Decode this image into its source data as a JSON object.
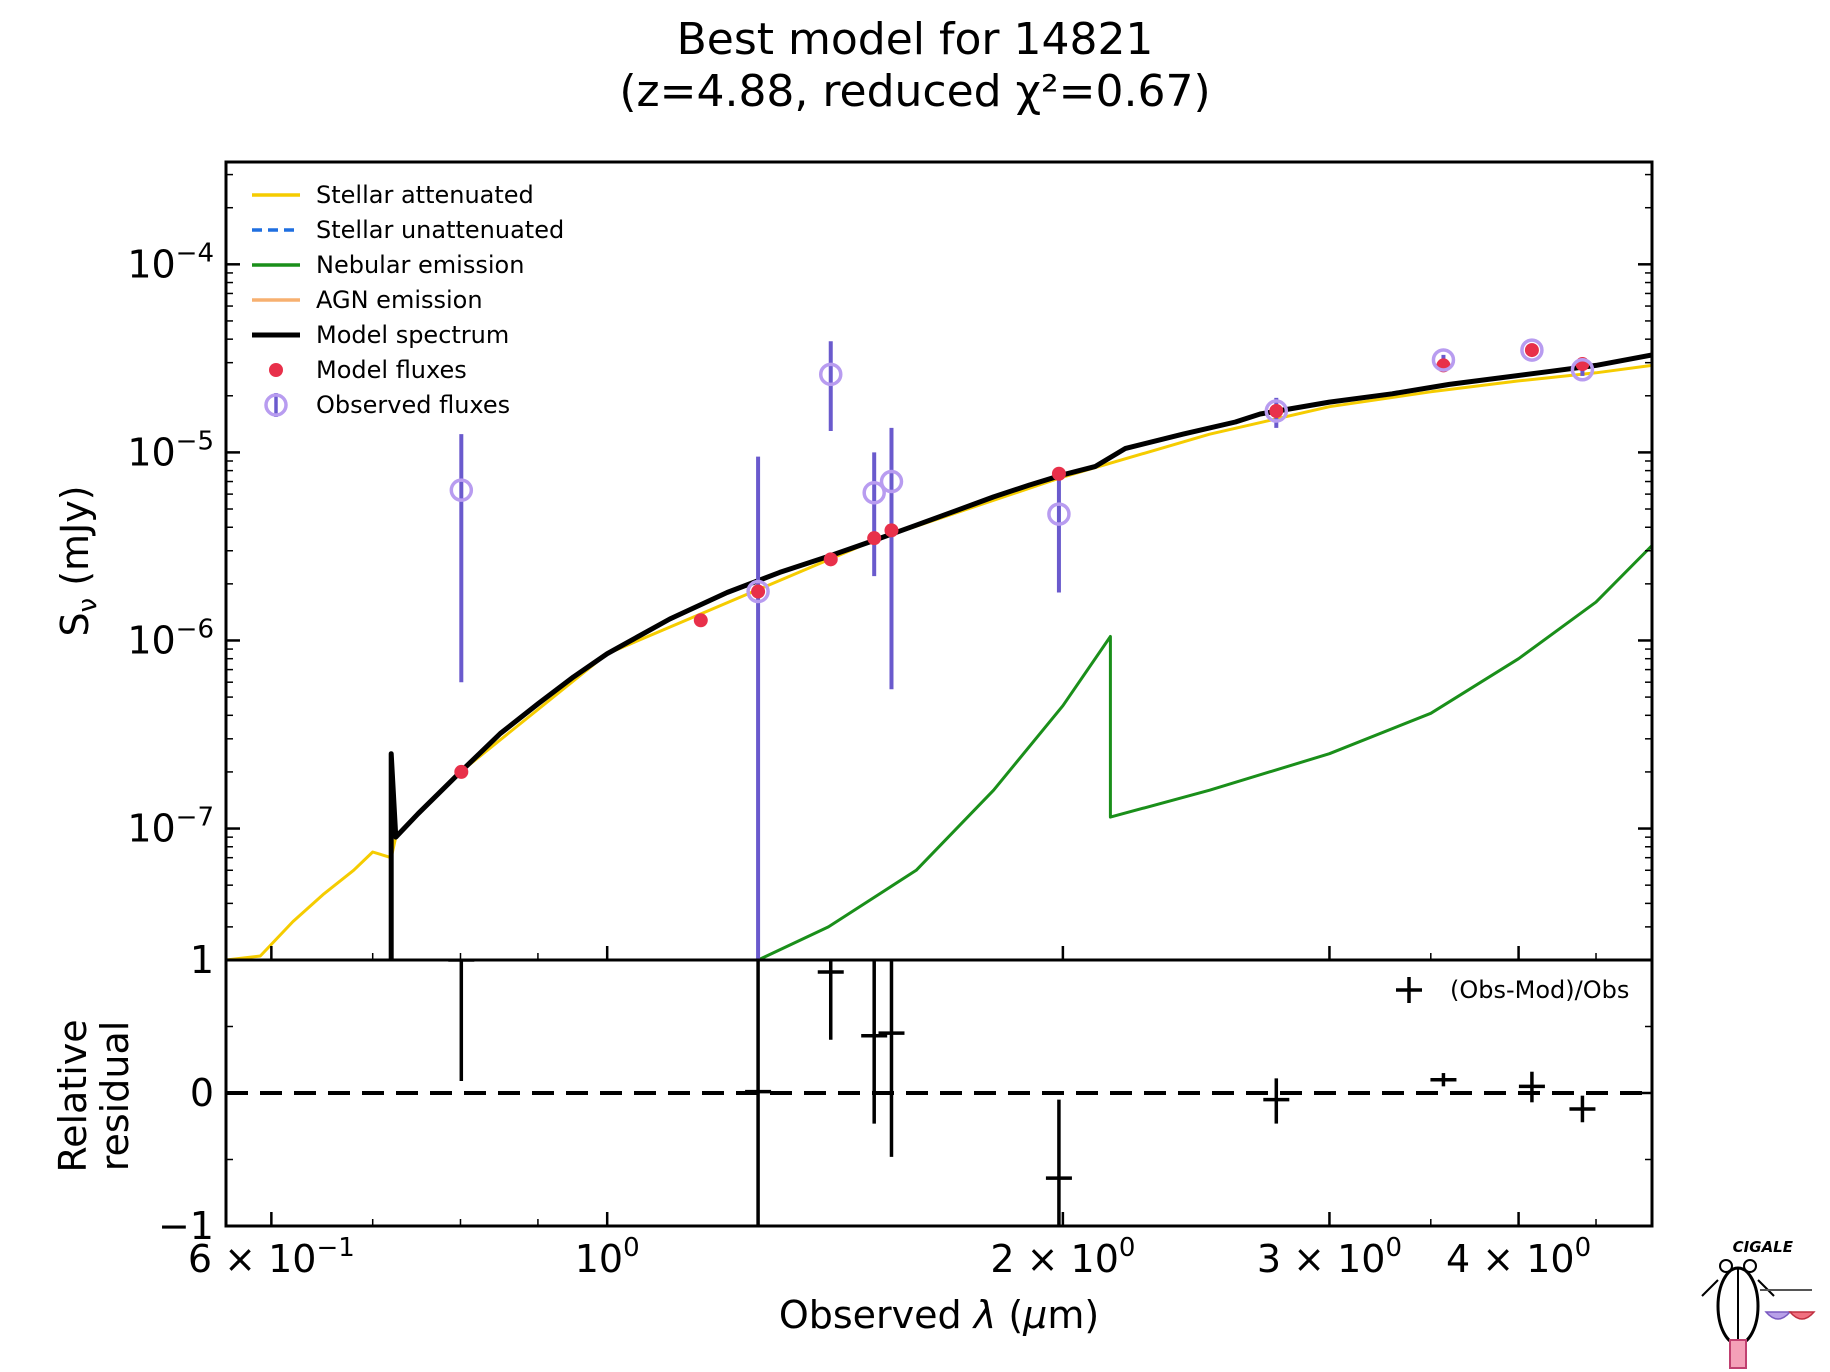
{
  "chart_data": [
    {
      "type": "line",
      "title": "Best model for 14821",
      "subtitle": "(z=4.88, reduced χ²=0.67)",
      "ylabel": "S",
      "ylabel_sub": "ν",
      "ylabel_unit": " (mJy)",
      "xscale": "log",
      "yscale": "log",
      "xlim": [
        0.56,
        4.9
      ],
      "ylim": [
        2e-08,
        0.00035
      ],
      "yticks": [
        {
          "value": 1e-07,
          "base": "10",
          "exp": "−7"
        },
        {
          "value": 1e-06,
          "base": "10",
          "exp": "−6"
        },
        {
          "value": 1e-05,
          "base": "10",
          "exp": "−5"
        },
        {
          "value": 0.0001,
          "base": "10",
          "exp": "−4"
        }
      ],
      "legend_position": "top-left",
      "legend": [
        {
          "label": "Stellar attenuated",
          "color": "#f5cc00",
          "style": "line"
        },
        {
          "label": "Stellar unattenuated",
          "color": "#1f6fe0",
          "style": "dashed"
        },
        {
          "label": "Nebular emission",
          "color": "#1a8f1a",
          "style": "line"
        },
        {
          "label": "AGN emission",
          "color": "#f7b070",
          "style": "line"
        },
        {
          "label": "Model spectrum",
          "color": "#000000",
          "style": "thick"
        },
        {
          "label": "Model fluxes",
          "color": "#e8304a",
          "style": "dot"
        },
        {
          "label": "Observed fluxes",
          "color": "#b89cf0",
          "style": "circle"
        }
      ],
      "series": [
        {
          "name": "Model spectrum",
          "color": "#000000",
          "x": [
            0.72,
            0.72,
            0.725,
            0.75,
            0.8,
            0.85,
            0.9,
            0.95,
            1.0,
            1.1,
            1.2,
            1.3,
            1.4,
            1.5,
            1.6,
            1.7,
            1.8,
            1.9,
            2.0,
            2.1,
            2.2,
            2.4,
            2.6,
            2.7,
            3.0,
            3.3,
            3.6,
            3.9,
            4.2,
            4.5,
            4.9
          ],
          "y": [
            2e-08,
            2.5e-07,
            9e-08,
            1.2e-07,
            2e-07,
            3.2e-07,
            4.6e-07,
            6.4e-07,
            8.5e-07,
            1.3e-06,
            1.8e-06,
            2.3e-06,
            2.8e-06,
            3.4e-06,
            4.1e-06,
            4.9e-06,
            5.8e-06,
            6.7e-06,
            7.6e-06,
            8.4e-06,
            1.05e-05,
            1.25e-05,
            1.45e-05,
            1.6e-05,
            1.85e-05,
            2.05e-05,
            2.3e-05,
            2.5e-05,
            2.7e-05,
            2.9e-05,
            3.3e-05
          ]
        },
        {
          "name": "Stellar attenuated",
          "color": "#f5cc00",
          "x": [
            0.56,
            0.59,
            0.62,
            0.65,
            0.68,
            0.7,
            0.72,
            0.725,
            0.75,
            0.8,
            1.0,
            1.5,
            2.0,
            2.5,
            3.0,
            3.5,
            4.0,
            4.5,
            4.9
          ],
          "y": [
            2e-08,
            2.1e-08,
            3.2e-08,
            4.5e-08,
            6e-08,
            7.5e-08,
            7e-08,
            9e-08,
            1.2e-07,
            2e-07,
            8.5e-07,
            3.4e-06,
            7.4e-06,
            1.25e-05,
            1.75e-05,
            2.1e-05,
            2.4e-05,
            2.65e-05,
            2.9e-05
          ]
        },
        {
          "name": "Nebular emission",
          "color": "#1a8f1a",
          "x": [
            1.258,
            1.4,
            1.6,
            1.8,
            2.0,
            2.15,
            2.15,
            2.5,
            3.0,
            3.5,
            4.0,
            4.5,
            4.9
          ],
          "y": [
            2e-08,
            3e-08,
            6e-08,
            1.6e-07,
            4.5e-07,
            1.05e-06,
            1.15e-07,
            1.6e-07,
            2.5e-07,
            4.1e-07,
            8e-07,
            1.6e-06,
            3.2e-06
          ]
        }
      ],
      "model_fluxes": {
        "color": "#e8304a",
        "x": [
          0.801,
          1.153,
          1.258,
          1.405,
          1.501,
          1.541,
          1.988,
          2.767,
          3.568,
          4.082,
          4.408
        ],
        "y": [
          2e-07,
          1.28e-06,
          1.82e-06,
          2.7e-06,
          3.5e-06,
          3.85e-06,
          7.7e-06,
          1.66e-05,
          2.9e-05,
          3.5e-05,
          2.95e-05
        ]
      },
      "observed_fluxes": {
        "color": "#b89cf0",
        "errcolor": "#6a5acd",
        "x": [
          0.801,
          1.258,
          1.405,
          1.501,
          1.541,
          1.988,
          2.767,
          3.568,
          4.082,
          4.408
        ],
        "y": [
          6.3e-06,
          1.82e-06,
          2.6e-05,
          6.1e-06,
          7e-06,
          4.7e-06,
          1.66e-05,
          3.1e-05,
          3.5e-05,
          2.75e-05
        ],
        "ylo": [
          6e-07,
          2e-08,
          1.3e-05,
          2.2e-06,
          5.5e-07,
          1.8e-06,
          1.35e-05,
          2.8e-05,
          3.25e-05,
          2.55e-05
        ],
        "yhi": [
          1.25e-05,
          9.5e-06,
          3.9e-05,
          1e-05,
          1.35e-05,
          7.6e-06,
          1.95e-05,
          3.3e-05,
          3.8e-05,
          2.95e-05
        ]
      }
    },
    {
      "type": "scatter",
      "xlabel": "Observed ",
      "xlabel_sym": "λ",
      "xlabel_unit": " (",
      "xlabel_mu": "μ",
      "xlabel_end": "m)",
      "ylabel_line1": "Relative",
      "ylabel_line2": "residual",
      "xscale": "log",
      "xlim": [
        0.56,
        4.9
      ],
      "ylim": [
        -1,
        1
      ],
      "yticks": [
        {
          "value": 1,
          "label": "1"
        },
        {
          "value": 0,
          "label": "0"
        },
        {
          "value": -1,
          "label": "−1"
        }
      ],
      "xticks": [
        {
          "value": 0.6,
          "mant": "6 × 10",
          "exp": "−1"
        },
        {
          "value": 1.0,
          "mant": "10",
          "exp": "0"
        },
        {
          "value": 2.0,
          "mant": "2 × 10",
          "exp": "0"
        },
        {
          "value": 3.0,
          "mant": "3 × 10",
          "exp": "0"
        },
        {
          "value": 4.0,
          "mant": "4 × 10",
          "exp": "0"
        }
      ],
      "legend_position": "top-right",
      "legend": [
        {
          "label": "(Obs-Mod)/Obs",
          "style": "plus"
        }
      ],
      "points": {
        "x": [
          0.801,
          1.258,
          1.405,
          1.501,
          1.541,
          1.988,
          2.767,
          3.568,
          4.082,
          4.408
        ],
        "y": [
          1.0,
          0.01,
          0.91,
          0.43,
          0.45,
          -0.64,
          -0.05,
          0.1,
          0.05,
          -0.12
        ],
        "ylo": [
          0.09,
          -1.0,
          0.4,
          -0.23,
          -0.48,
          -1.0,
          -0.23,
          0.05,
          -0.07,
          -0.22
        ],
        "yhi": [
          1.0,
          1.0,
          1.0,
          1.0,
          1.0,
          -0.05,
          0.11,
          0.15,
          0.16,
          -0.02
        ]
      }
    }
  ],
  "logo": {
    "text": "CIGALE"
  }
}
